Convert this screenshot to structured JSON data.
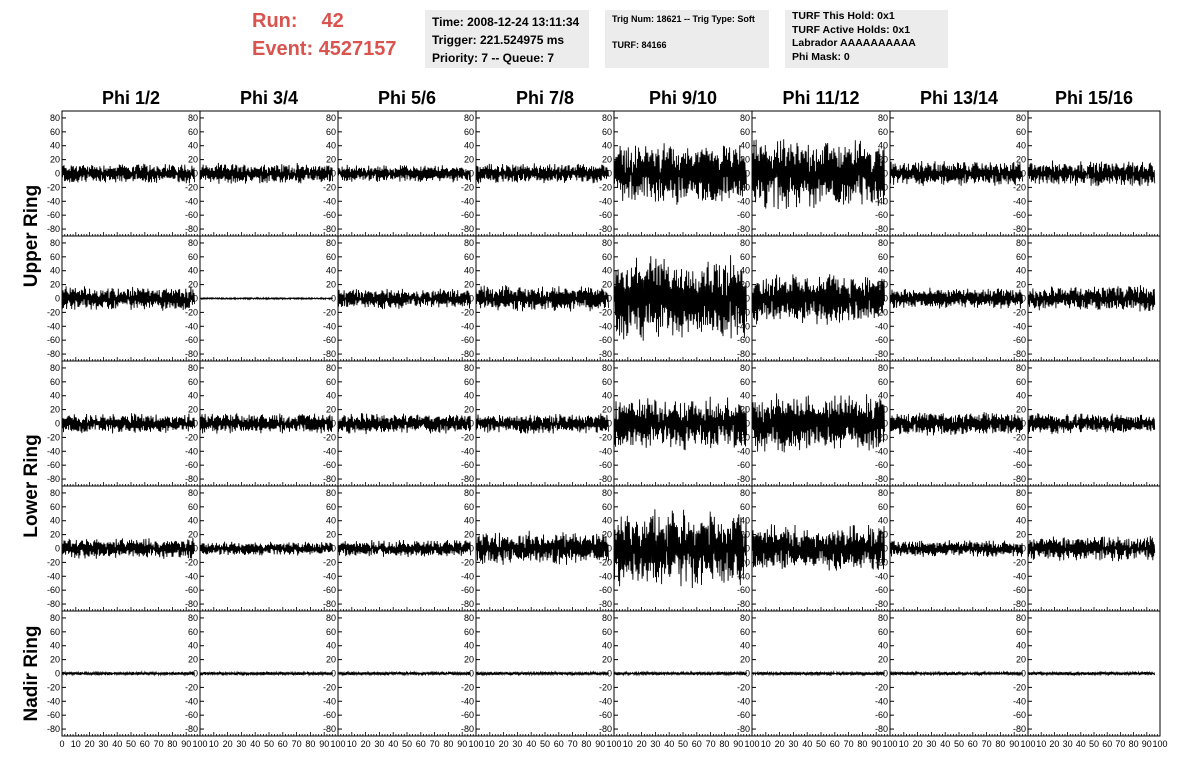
{
  "header": {
    "run_label": "Run:",
    "run_value": "42",
    "event_label": "Event:",
    "event_value": "4527157",
    "time": "Time: 2008-12-24 13:11:34",
    "trigger": "Trigger: 221.524975 ms",
    "priority": "Priority: 7 -- Queue: 7",
    "trig_line": "Trig Num: 18621 -- Trig Type: Soft",
    "turf": "TURF: 84166",
    "turf_hold": "TURF This Hold: 0x1",
    "turf_active": "TURF Active Holds: 0x1",
    "labrador": "Labrador AAAAAAAAAA",
    "phi_mask": "Phi Mask: 0"
  },
  "colors": {
    "run_text": "#d9534f",
    "panel_bg": "#ececec",
    "trace": "#000000"
  },
  "chart_data": {
    "type": "line",
    "columns": [
      "Phi 1/2",
      "Phi 3/4",
      "Phi 5/6",
      "Phi 7/8",
      "Phi 9/10",
      "Phi 11/12",
      "Phi 13/14",
      "Phi 15/16"
    ],
    "row_labels": [
      "Upper Ring",
      "Lower Ring",
      "Nadir Ring"
    ],
    "rows_per_ring": [
      2,
      2,
      1
    ],
    "ylim": [
      -90,
      90
    ],
    "xlim": [
      0,
      100
    ],
    "yticks": [
      80,
      60,
      40,
      20,
      0,
      -20,
      -40,
      -60,
      -80
    ],
    "xticks": [
      0,
      10,
      20,
      30,
      40,
      50,
      60,
      70,
      80,
      90,
      100
    ],
    "samples_per_trace": 260,
    "trace_x_range": [
      0,
      96
    ],
    "amplitudes": [
      [
        12,
        12,
        10,
        12,
        35,
        40,
        15,
        15
      ],
      [
        14,
        1,
        12,
        15,
        50,
        30,
        12,
        15
      ],
      [
        12,
        12,
        12,
        12,
        30,
        35,
        14,
        12
      ],
      [
        12,
        8,
        10,
        20,
        45,
        28,
        10,
        15
      ],
      [
        2,
        2,
        2,
        2,
        2,
        2,
        2,
        2
      ]
    ]
  }
}
